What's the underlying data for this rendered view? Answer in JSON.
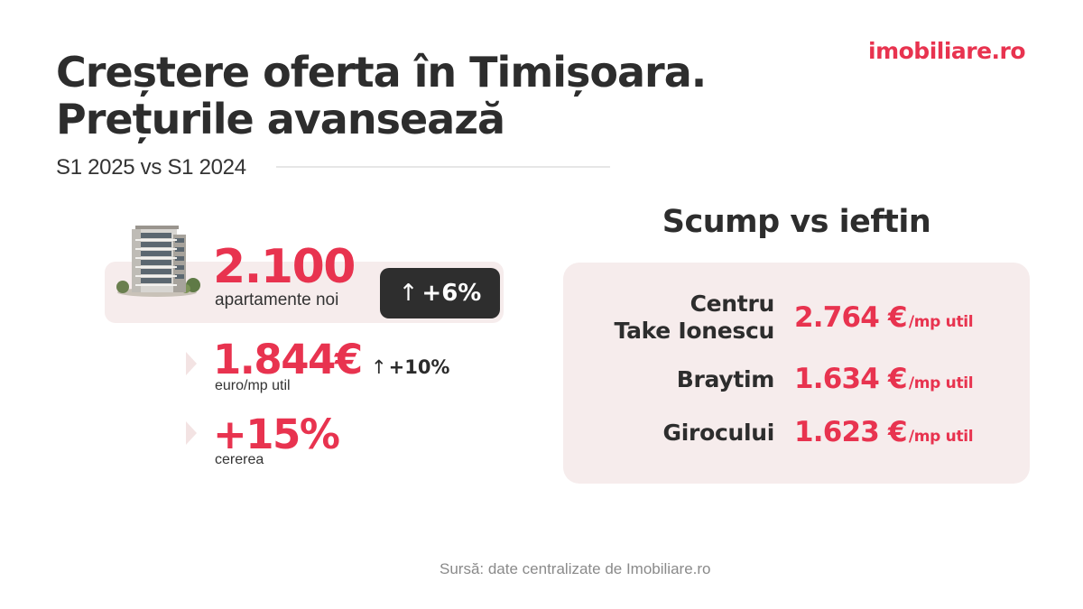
{
  "brand": {
    "logo_text": "imobiliare.ro",
    "accent": "#e8334f",
    "dark": "#2e2e2e",
    "panel_bg": "#f6ecec"
  },
  "header": {
    "title_line1": "Creștere oferta în Timișoara.",
    "title_line2": "Prețurile avansează",
    "subtitle": "S1 2025 vs S1 2024"
  },
  "stats": {
    "apartments": {
      "value": "2.100",
      "label": "apartamente noi",
      "change_arrow": "↑",
      "change": "+6%",
      "icon": "apartment-building-image"
    },
    "price": {
      "value": "1.844€",
      "label": "euro/mp util",
      "change_arrow": "↑",
      "change": "+10%"
    },
    "demand": {
      "value": "+15%",
      "label": "cererea"
    }
  },
  "comparison": {
    "title": "Scump vs ieftin",
    "rows": [
      {
        "zone_line1": "Centru",
        "zone_line2": "Take Ionescu",
        "price": "2.764 €",
        "unit": "/mp util"
      },
      {
        "zone_line1": "Braytim",
        "zone_line2": "",
        "price": "1.634 €",
        "unit": "/mp util"
      },
      {
        "zone_line1": "Girocului",
        "zone_line2": "",
        "price": "1.623 €",
        "unit": "/mp util"
      }
    ]
  },
  "footer": {
    "source": "Sursă: date centralizate de Imobiliare.ro"
  }
}
